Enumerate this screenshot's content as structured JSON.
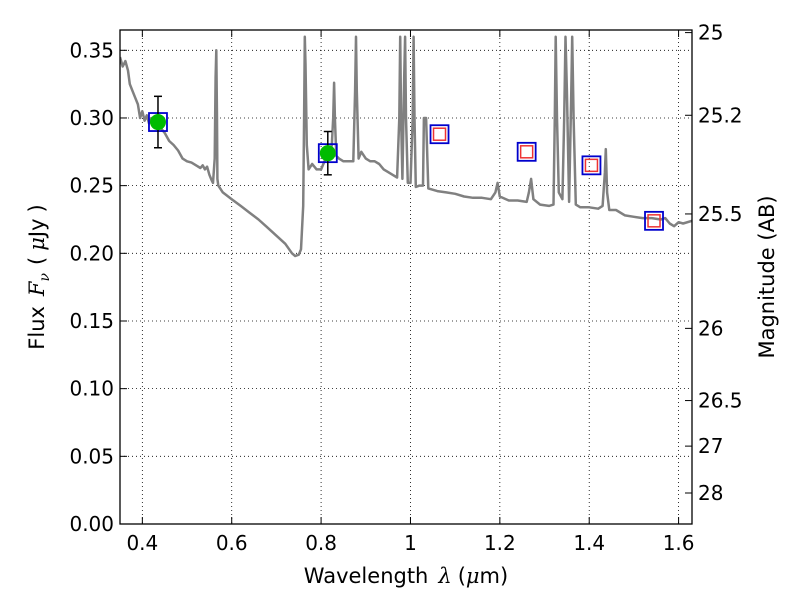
{
  "chart_data": {
    "type": "scatter",
    "xlabel": {
      "prefix": "Wavelength",
      "symbol": "λ",
      "unit_open": "(",
      "unit_mu": "μ",
      "unit_rest": "m)"
    },
    "ylabel": {
      "prefix": "Flux",
      "symbol": "F",
      "subscript": "ν",
      "unit_open": "(",
      "unit_mu": "μ",
      "unit_rest": "Jy",
      "unit_close": ")"
    },
    "y2label": "Magnitude (AB)",
    "xlim": [
      0.35,
      1.63
    ],
    "ylim": [
      0.0,
      0.365
    ],
    "grid": true,
    "x_ticks": [
      {
        "value": 0.4,
        "label": "0.4"
      },
      {
        "value": 0.6,
        "label": "0.6"
      },
      {
        "value": 0.8,
        "label": "0.8"
      },
      {
        "value": 1.0,
        "label": "1"
      },
      {
        "value": 1.2,
        "label": "1.2"
      },
      {
        "value": 1.4,
        "label": "1.4"
      },
      {
        "value": 1.6,
        "label": "1.6"
      }
    ],
    "y_ticks": [
      {
        "value": 0.0,
        "label": "0.00"
      },
      {
        "value": 0.05,
        "label": "0.05"
      },
      {
        "value": 0.1,
        "label": "0.10"
      },
      {
        "value": 0.15,
        "label": "0.15"
      },
      {
        "value": 0.2,
        "label": "0.20"
      },
      {
        "value": 0.25,
        "label": "0.25"
      },
      {
        "value": 0.3,
        "label": "0.30"
      },
      {
        "value": 0.35,
        "label": "0.35"
      }
    ],
    "y2_ticks": [
      {
        "mag": 25,
        "label": "25"
      },
      {
        "mag": 25.2,
        "label": "25.2"
      },
      {
        "mag": 25.5,
        "label": "25.5"
      },
      {
        "mag": 26,
        "label": "26"
      },
      {
        "mag": 26.5,
        "label": "26.5"
      },
      {
        "mag": 27,
        "label": "27"
      },
      {
        "mag": 28,
        "label": "28"
      }
    ],
    "series": [
      {
        "type": "line",
        "color": "#808080",
        "points": [
          [
            0.35,
            0.345
          ],
          [
            0.356,
            0.338
          ],
          [
            0.362,
            0.342
          ],
          [
            0.368,
            0.335
          ],
          [
            0.372,
            0.325
          ],
          [
            0.378,
            0.32
          ],
          [
            0.384,
            0.315
          ],
          [
            0.39,
            0.31
          ],
          [
            0.395,
            0.3
          ],
          [
            0.4,
            0.305
          ],
          [
            0.405,
            0.298
          ],
          [
            0.41,
            0.302
          ],
          [
            0.415,
            0.296
          ],
          [
            0.42,
            0.3
          ],
          [
            0.43,
            0.297
          ],
          [
            0.44,
            0.293
          ],
          [
            0.45,
            0.289
          ],
          [
            0.46,
            0.283
          ],
          [
            0.47,
            0.28
          ],
          [
            0.48,
            0.276
          ],
          [
            0.49,
            0.27
          ],
          [
            0.5,
            0.268
          ],
          [
            0.51,
            0.267
          ],
          [
            0.52,
            0.265
          ],
          [
            0.53,
            0.263
          ],
          [
            0.535,
            0.265
          ],
          [
            0.54,
            0.262
          ],
          [
            0.545,
            0.264
          ],
          [
            0.55,
            0.258
          ],
          [
            0.555,
            0.254
          ],
          [
            0.558,
            0.252
          ],
          [
            0.562,
            0.27
          ],
          [
            0.564,
            0.33
          ],
          [
            0.5655,
            0.35
          ],
          [
            0.567,
            0.3
          ],
          [
            0.568,
            0.255
          ],
          [
            0.57,
            0.25
          ],
          [
            0.58,
            0.245
          ],
          [
            0.6,
            0.24
          ],
          [
            0.62,
            0.235
          ],
          [
            0.64,
            0.23
          ],
          [
            0.66,
            0.225
          ],
          [
            0.68,
            0.219
          ],
          [
            0.7,
            0.213
          ],
          [
            0.72,
            0.207
          ],
          [
            0.735,
            0.2
          ],
          [
            0.742,
            0.198
          ],
          [
            0.75,
            0.199
          ],
          [
            0.755,
            0.203
          ],
          [
            0.76,
            0.235
          ],
          [
            0.762,
            0.3
          ],
          [
            0.7635,
            0.36
          ],
          [
            0.765,
            0.34
          ],
          [
            0.768,
            0.28
          ],
          [
            0.772,
            0.262
          ],
          [
            0.776,
            0.264
          ],
          [
            0.78,
            0.266
          ],
          [
            0.79,
            0.262
          ],
          [
            0.8,
            0.262
          ],
          [
            0.81,
            0.27
          ],
          [
            0.82,
            0.273
          ],
          [
            0.824,
            0.28
          ],
          [
            0.827,
            0.3
          ],
          [
            0.829,
            0.326
          ],
          [
            0.831,
            0.3
          ],
          [
            0.834,
            0.272
          ],
          [
            0.84,
            0.27
          ],
          [
            0.85,
            0.268
          ],
          [
            0.86,
            0.268
          ],
          [
            0.872,
            0.268
          ],
          [
            0.876,
            0.32
          ],
          [
            0.878,
            0.36
          ],
          [
            0.88,
            0.32
          ],
          [
            0.884,
            0.27
          ],
          [
            0.89,
            0.275
          ],
          [
            0.9,
            0.27
          ],
          [
            0.91,
            0.268
          ],
          [
            0.92,
            0.268
          ],
          [
            0.93,
            0.266
          ],
          [
            0.94,
            0.262
          ],
          [
            0.95,
            0.26
          ],
          [
            0.96,
            0.258
          ],
          [
            0.97,
            0.256
          ],
          [
            0.975,
            0.3
          ],
          [
            0.977,
            0.36
          ],
          [
            0.979,
            0.3
          ],
          [
            0.982,
            0.255
          ],
          [
            0.986,
            0.33
          ],
          [
            0.988,
            0.36
          ],
          [
            0.99,
            0.3
          ],
          [
            0.994,
            0.252
          ],
          [
            1.0,
            0.252
          ],
          [
            1.005,
            0.3
          ],
          [
            1.007,
            0.36
          ],
          [
            1.009,
            0.3
          ],
          [
            1.012,
            0.249
          ],
          [
            1.02,
            0.25
          ],
          [
            1.028,
            0.25
          ],
          [
            1.03,
            0.3
          ],
          [
            1.035,
            0.3
          ],
          [
            1.04,
            0.248
          ],
          [
            1.06,
            0.246
          ],
          [
            1.08,
            0.245
          ],
          [
            1.1,
            0.244
          ],
          [
            1.12,
            0.242
          ],
          [
            1.14,
            0.241
          ],
          [
            1.16,
            0.241
          ],
          [
            1.18,
            0.24
          ],
          [
            1.19,
            0.245
          ],
          [
            1.195,
            0.252
          ],
          [
            1.2,
            0.242
          ],
          [
            1.22,
            0.239
          ],
          [
            1.24,
            0.239
          ],
          [
            1.26,
            0.238
          ],
          [
            1.265,
            0.245
          ],
          [
            1.27,
            0.255
          ],
          [
            1.275,
            0.24
          ],
          [
            1.29,
            0.236
          ],
          [
            1.31,
            0.235
          ],
          [
            1.32,
            0.236
          ],
          [
            1.323,
            0.3
          ],
          [
            1.325,
            0.36
          ],
          [
            1.328,
            0.3
          ],
          [
            1.332,
            0.245
          ],
          [
            1.34,
            0.24
          ],
          [
            1.344,
            0.3
          ],
          [
            1.347,
            0.36
          ],
          [
            1.35,
            0.32
          ],
          [
            1.355,
            0.238
          ],
          [
            1.36,
            0.32
          ],
          [
            1.362,
            0.36
          ],
          [
            1.365,
            0.3
          ],
          [
            1.37,
            0.236
          ],
          [
            1.38,
            0.234
          ],
          [
            1.4,
            0.234
          ],
          [
            1.42,
            0.233
          ],
          [
            1.43,
            0.235
          ],
          [
            1.435,
            0.26
          ],
          [
            1.437,
            0.277
          ],
          [
            1.44,
            0.245
          ],
          [
            1.445,
            0.232
          ],
          [
            1.46,
            0.232
          ],
          [
            1.48,
            0.228
          ],
          [
            1.5,
            0.227
          ],
          [
            1.52,
            0.226
          ],
          [
            1.54,
            0.226
          ],
          [
            1.56,
            0.225
          ],
          [
            1.57,
            0.226
          ],
          [
            1.58,
            0.222
          ],
          [
            1.59,
            0.22
          ],
          [
            1.6,
            0.223
          ],
          [
            1.61,
            0.222
          ],
          [
            1.63,
            0.224
          ]
        ]
      },
      {
        "type": "observed",
        "marker": "green-circle",
        "color": "#00bb00",
        "points": [
          {
            "x": 0.435,
            "y": 0.297,
            "yerr": 0.019
          },
          {
            "x": 0.815,
            "y": 0.274,
            "yerr": 0.016
          }
        ]
      },
      {
        "type": "model-photometry",
        "marker": "blue-open-square",
        "color": "#0000cc",
        "points": [
          {
            "x": 0.435,
            "y": 0.297
          },
          {
            "x": 0.815,
            "y": 0.274
          },
          {
            "x": 1.065,
            "y": 0.288
          },
          {
            "x": 1.26,
            "y": 0.275
          },
          {
            "x": 1.405,
            "y": 0.265
          },
          {
            "x": 1.545,
            "y": 0.224
          }
        ]
      },
      {
        "type": "predicted",
        "marker": "red-open-square",
        "color": "#ee3333",
        "points": [
          {
            "x": 1.065,
            "y": 0.288
          },
          {
            "x": 1.26,
            "y": 0.275
          },
          {
            "x": 1.405,
            "y": 0.265
          },
          {
            "x": 1.545,
            "y": 0.224
          }
        ]
      }
    ]
  }
}
